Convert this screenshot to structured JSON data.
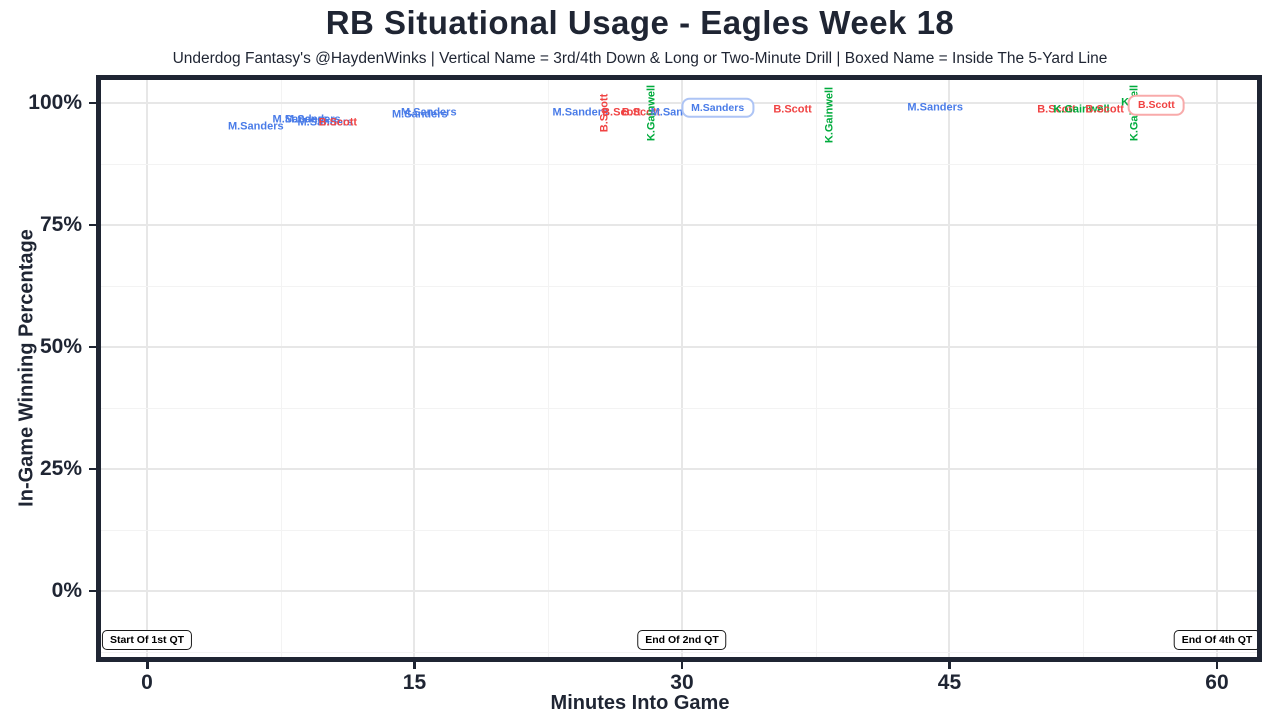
{
  "title": "RB Situational Usage - Eagles Week 18",
  "subtitle": "Underdog Fantasy's @HaydenWinks | Vertical Name = 3rd/4th Down & Long or Two-Minute Drill | Boxed Name = Inside The 5-Yard Line",
  "colors": {
    "M.Sanders": "#4a7ce8",
    "B.Scott": "#f04343",
    "K.Gainwell": "#00ab3c",
    "frame": "#1f2533",
    "grid_major": "#e7e7e7",
    "grid_minor": "#f3f3f3",
    "text": "#1f2533"
  },
  "chart_data": {
    "type": "scatter",
    "title": "RB Situational Usage - Eagles Week 18",
    "xlabel": "Minutes Into Game",
    "ylabel": "In-Game Winning Percentage",
    "xlim": [
      -2.9,
      62.5
    ],
    "ylim": [
      -13.5,
      104.5
    ],
    "grid": "on",
    "legend": "none (color-coded player names as markers)",
    "x_ticks": [
      0,
      15,
      30,
      45,
      60
    ],
    "y_ticks": [
      {
        "value": 0,
        "label": "0%"
      },
      {
        "value": 25,
        "label": "25%"
      },
      {
        "value": 50,
        "label": "50%"
      },
      {
        "value": 75,
        "label": "75%"
      },
      {
        "value": 100,
        "label": "100%"
      }
    ],
    "gridlines": {
      "x_major": [
        0,
        15,
        30,
        45,
        60
      ],
      "x_minor": [
        7.5,
        22.5,
        37.5,
        52.5
      ],
      "y_major": [
        0,
        25,
        50,
        75,
        100
      ],
      "y_minor": [
        -12.5,
        12.5,
        37.5,
        62.5,
        87.5
      ]
    },
    "points": [
      {
        "player": "M.Sanders",
        "minutes": 6.1,
        "win_pct": 95,
        "vertical": false,
        "boxed": false
      },
      {
        "player": "M.Sanders",
        "minutes": 8.6,
        "win_pct": 96.5,
        "vertical": false,
        "boxed": false
      },
      {
        "player": "M.Sanders",
        "minutes": 9.3,
        "win_pct": 96.5,
        "vertical": false,
        "boxed": false
      },
      {
        "player": "M.Sanders",
        "minutes": 10.0,
        "win_pct": 96,
        "vertical": false,
        "boxed": false
      },
      {
        "player": "B.Scott",
        "minutes": 10.7,
        "win_pct": 96,
        "vertical": false,
        "boxed": false
      },
      {
        "player": "M.Sanders",
        "minutes": 15.3,
        "win_pct": 97.5,
        "vertical": false,
        "boxed": false
      },
      {
        "player": "M.Sanders",
        "minutes": 15.8,
        "win_pct": 98,
        "vertical": false,
        "boxed": false
      },
      {
        "player": "M.Sanders",
        "minutes": 24.3,
        "win_pct": 98,
        "vertical": false,
        "boxed": false
      },
      {
        "player": "B.Scott",
        "minutes": 25.7,
        "win_pct": 98,
        "vertical": true,
        "boxed": false
      },
      {
        "player": "B.Scott",
        "minutes": 26.6,
        "win_pct": 98,
        "vertical": false,
        "boxed": false
      },
      {
        "player": "B.Scott",
        "minutes": 27.7,
        "win_pct": 98,
        "vertical": false,
        "boxed": false
      },
      {
        "player": "K.Gainwell",
        "minutes": 28.3,
        "win_pct": 98,
        "vertical": true,
        "boxed": false
      },
      {
        "player": "M.Sanders",
        "minutes": 29.8,
        "win_pct": 98,
        "vertical": false,
        "boxed": false
      },
      {
        "player": "M.Sanders",
        "minutes": 32.0,
        "win_pct": 99,
        "vertical": false,
        "boxed": true
      },
      {
        "player": "B.Scott",
        "minutes": 36.2,
        "win_pct": 98.5,
        "vertical": false,
        "boxed": false
      },
      {
        "player": "K.Gainwell",
        "minutes": 38.3,
        "win_pct": 97.5,
        "vertical": true,
        "boxed": false
      },
      {
        "player": "M.Sanders",
        "minutes": 44.2,
        "win_pct": 99,
        "vertical": false,
        "boxed": false
      },
      {
        "player": "B.Scott",
        "minutes": 51.0,
        "win_pct": 98.5,
        "vertical": false,
        "boxed": false
      },
      {
        "player": "K.Gainwell",
        "minutes": 52.4,
        "win_pct": 98.5,
        "vertical": false,
        "boxed": false
      },
      {
        "player": "B.Scott",
        "minutes": 53.7,
        "win_pct": 98.5,
        "vertical": false,
        "boxed": false
      },
      {
        "player": "K.Gainwell",
        "minutes": 56.2,
        "win_pct": 100,
        "vertical": false,
        "boxed": false
      },
      {
        "player": "K.Gainwell",
        "minutes": 55.4,
        "win_pct": 98,
        "vertical": true,
        "boxed": false
      },
      {
        "player": "B.Scott",
        "minutes": 56.6,
        "win_pct": 99.5,
        "vertical": false,
        "boxed": true
      }
    ],
    "annotations": [
      {
        "label": "Start Of 1st QT",
        "minutes": 0,
        "win_pct": -10
      },
      {
        "label": "End Of 2nd QT",
        "minutes": 30,
        "win_pct": -10
      },
      {
        "label": "End Of 4th QT",
        "minutes": 60,
        "win_pct": -10
      }
    ]
  }
}
